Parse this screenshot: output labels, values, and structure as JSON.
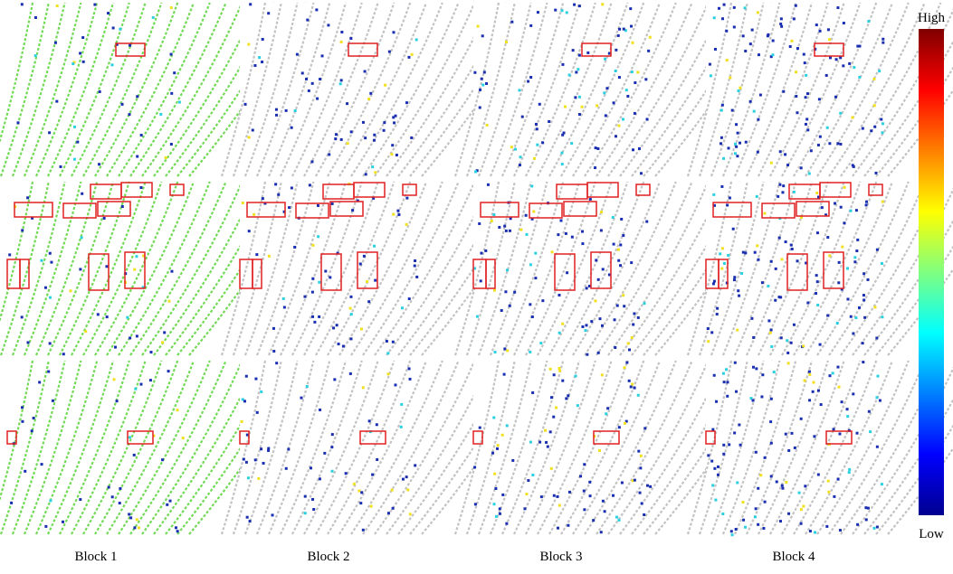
{
  "columns": [
    "Block 1",
    "Block 2",
    "Block 3",
    "Block 4"
  ],
  "colorbar": {
    "high": "High",
    "low": "Low"
  }
}
